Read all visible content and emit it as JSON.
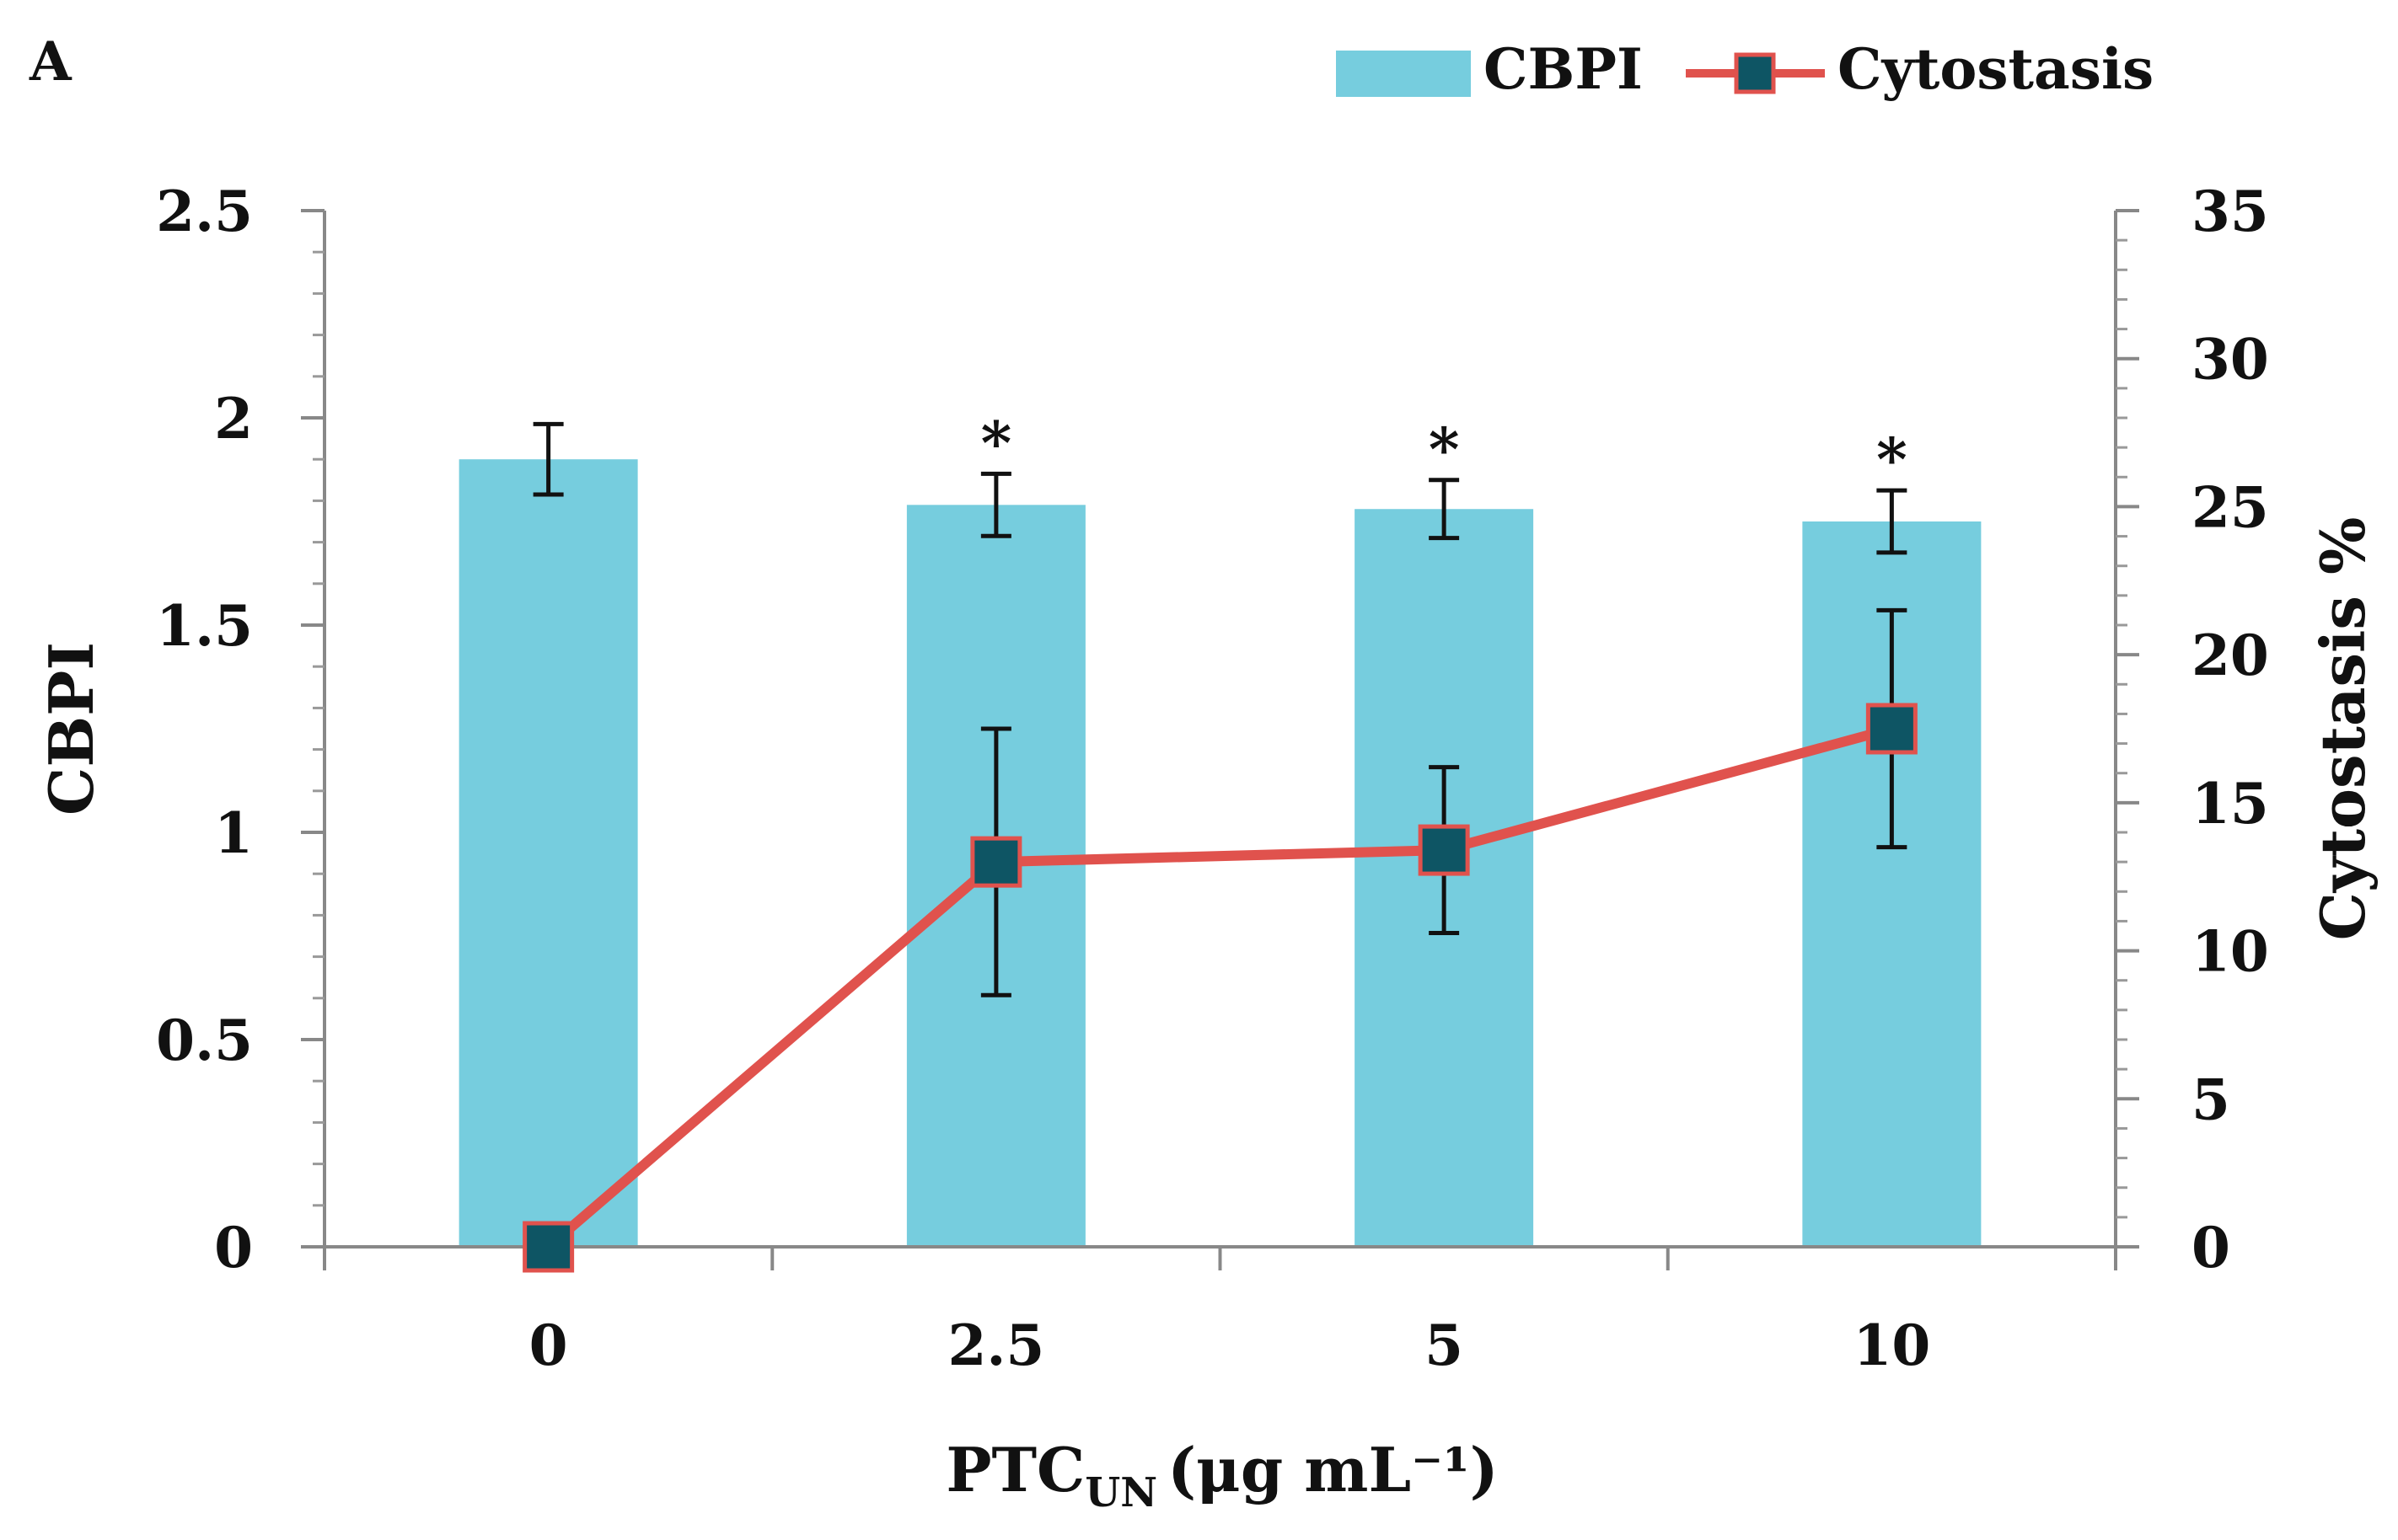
{
  "chart_data": {
    "type": "bar",
    "panel_label": "A",
    "categories": [
      "0",
      "2.5",
      "5",
      "10"
    ],
    "xlabel": {
      "main": "PTC",
      "subscript": "UN",
      "unit": "(μg mL⁻¹)"
    },
    "ylabel": "CBPI",
    "y2label": "Cytostasis %",
    "ylim": [
      0,
      2.5
    ],
    "y2lim": [
      0,
      35
    ],
    "yticks": [
      "0",
      "0.5",
      "1",
      "1.5",
      "2",
      "2.5"
    ],
    "y2ticks": [
      "0",
      "5",
      "10",
      "15",
      "20",
      "25",
      "30",
      "35"
    ],
    "legend_position": "top-right",
    "series": [
      {
        "name": "CBPI",
        "kind": "bar",
        "axis": "left",
        "color": "#76CDDE",
        "values": [
          1.9,
          1.79,
          1.78,
          1.75
        ],
        "errors": [
          0.085,
          0.075,
          0.07,
          0.075
        ]
      },
      {
        "name": "Cytostasis",
        "kind": "line",
        "axis": "right",
        "color": "#E0524D",
        "marker_color": "#0E5564",
        "values": [
          0,
          13,
          13.4,
          17.5
        ],
        "errors": [
          0,
          4.5,
          2.8,
          4.0
        ]
      }
    ],
    "significance": [
      "",
      "*",
      "*",
      "*"
    ]
  }
}
